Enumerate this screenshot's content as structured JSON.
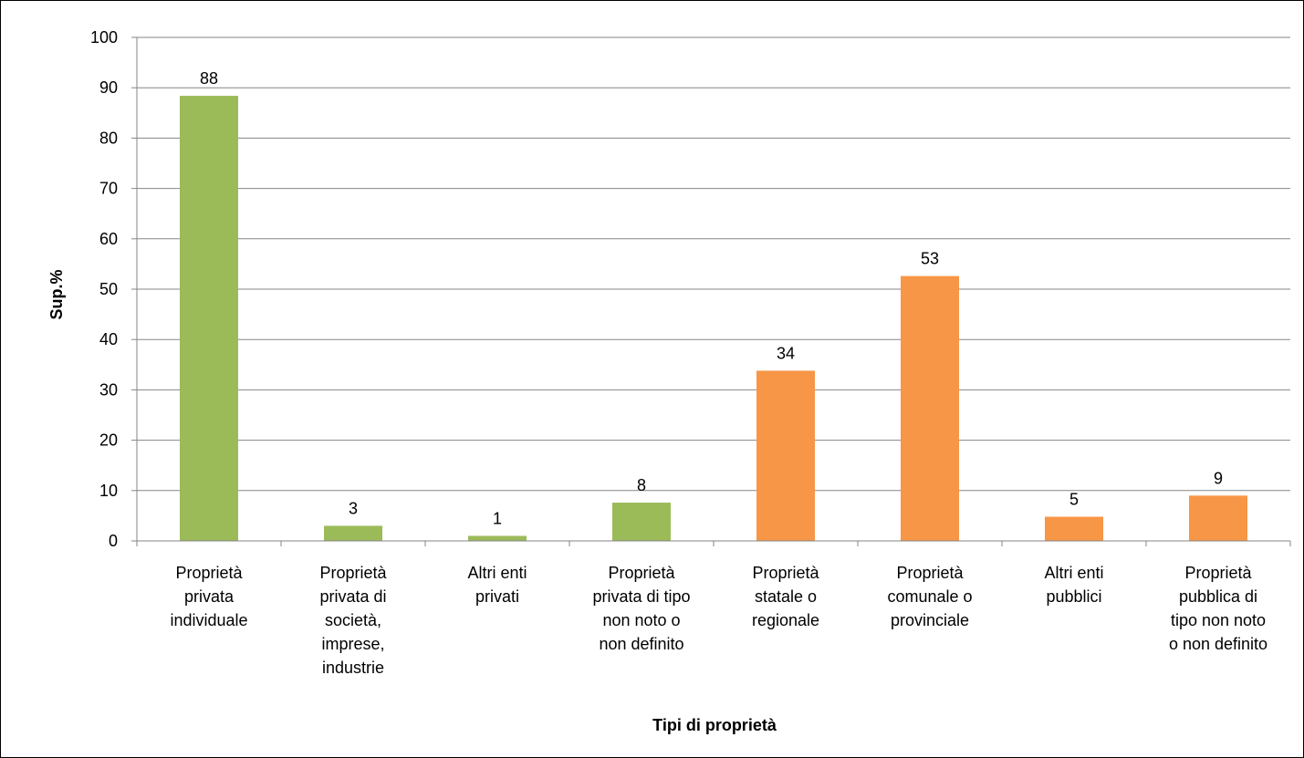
{
  "chart_data": {
    "type": "bar",
    "xlabel": "Tipi di proprietà",
    "ylabel": "Sup.%",
    "ylim": [
      0,
      100
    ],
    "yticks": [
      0,
      10,
      20,
      30,
      40,
      50,
      60,
      70,
      80,
      90,
      100
    ],
    "grid": true,
    "legend": "none",
    "categories": [
      [
        "Proprietà",
        "privata",
        "individuale"
      ],
      [
        "Proprietà",
        "privata di",
        "società,",
        "imprese,",
        "industrie"
      ],
      [
        "Altri enti",
        "privati"
      ],
      [
        "Proprietà",
        "privata di tipo",
        "non noto o",
        "non definito"
      ],
      [
        "Proprietà",
        "statale o",
        "regionale"
      ],
      [
        "Proprietà",
        "comunale o",
        "provinciale"
      ],
      [
        "Altri enti",
        "pubblici"
      ],
      [
        "Proprietà",
        "pubblica di",
        "tipo non noto",
        "o non definito"
      ]
    ],
    "values": [
      88.4,
      3.0,
      1.0,
      7.6,
      33.8,
      52.6,
      4.8,
      9.0
    ],
    "data_labels": [
      "88",
      "3",
      "1",
      "8",
      "34",
      "53",
      "5",
      "9"
    ],
    "bar_colors": [
      "#9BBB59",
      "#9BBB59",
      "#9BBB59",
      "#9BBB59",
      "#F79646",
      "#F79646",
      "#F79646",
      "#F79646"
    ],
    "colors": {
      "grid": "#868686",
      "axis": "#868686",
      "private": "#9BBB59",
      "public": "#F79646"
    }
  }
}
